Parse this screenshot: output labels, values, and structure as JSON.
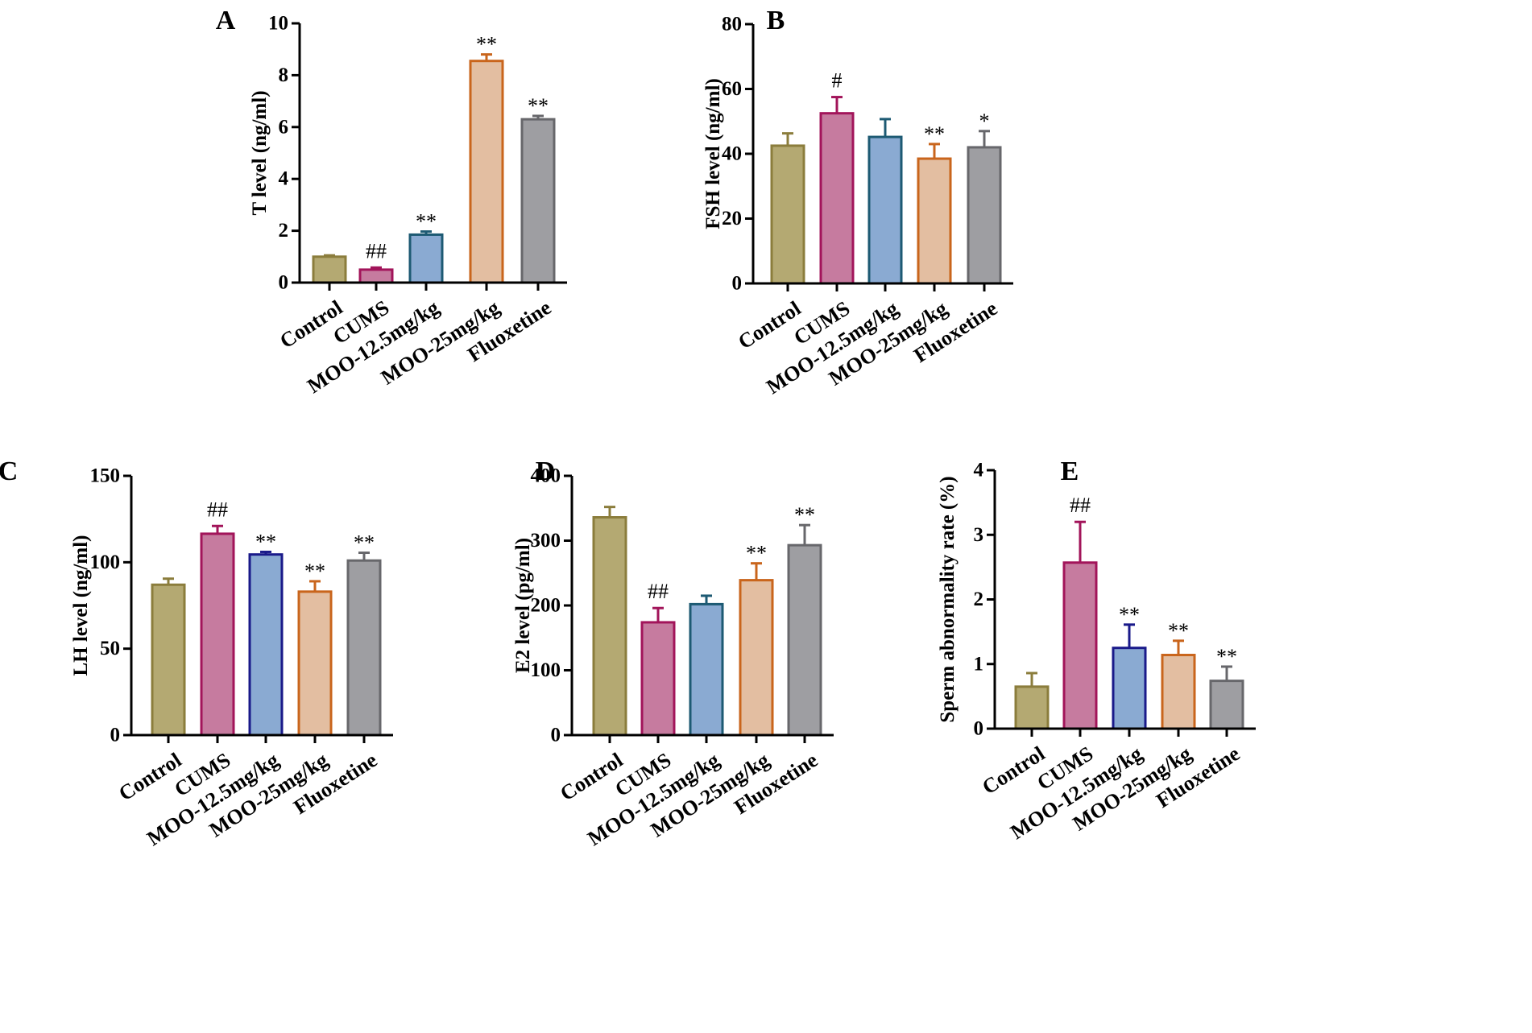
{
  "colors": {
    "fills": [
      "#b4a972",
      "#c67b9f",
      "#8aaad2",
      "#e3bea1",
      "#9e9ea2"
    ],
    "strokes_default": [
      "#8b7d3c",
      "#a2145a",
      "#1d5a73",
      "#c9651c",
      "#67676b"
    ],
    "strokes_panel_c": [
      "#8b7d3c",
      "#a2145a",
      "#1a1a8a",
      "#c9651c",
      "#67676b"
    ],
    "strokes_panel_e": [
      "#8b7d3c",
      "#a2145a",
      "#1a1a8a",
      "#c9651c",
      "#67676b"
    ]
  },
  "chart_data": [
    {
      "panel": "A",
      "type": "bar",
      "title": "",
      "ylabel": "T level (ng/ml)",
      "ylim": [
        0,
        10
      ],
      "yticks": [
        0,
        2,
        4,
        6,
        8,
        10
      ],
      "categories": [
        "Control",
        "CUMS",
        "MOO-12.5mg/kg",
        "MOO-25mg/kg",
        "Fluoxetine"
      ],
      "values": [
        1.0,
        0.5,
        1.85,
        8.55,
        6.3
      ],
      "errors": [
        0.05,
        0.08,
        0.12,
        0.25,
        0.13
      ],
      "significance": [
        "",
        "##",
        "**",
        "**",
        "**"
      ]
    },
    {
      "panel": "B",
      "type": "bar",
      "title": "",
      "ylabel": "FSH level (ng/ml)",
      "ylim": [
        0,
        80
      ],
      "yticks": [
        0,
        20,
        40,
        60,
        80
      ],
      "categories": [
        "Control",
        "CUMS",
        "MOO-12.5mg/kg",
        "MOO-25mg/kg",
        "Fluoxetine"
      ],
      "values": [
        42.5,
        52.5,
        45.2,
        38.5,
        42.0
      ],
      "errors": [
        3.8,
        5.0,
        5.5,
        4.5,
        5.0
      ],
      "significance": [
        "",
        "#",
        "",
        "**",
        "*"
      ]
    },
    {
      "panel": "C",
      "type": "bar",
      "title": "",
      "ylabel": "LH level (ng/ml)",
      "ylim": [
        0,
        150
      ],
      "yticks": [
        0,
        50,
        100,
        150
      ],
      "categories": [
        "Control",
        "CUMS",
        "MOO-12.5mg/kg",
        "MOO-25mg/kg",
        "Fluoxetine"
      ],
      "values": [
        87.0,
        116.5,
        104.5,
        83.0,
        101.0
      ],
      "errors": [
        3.5,
        4.5,
        1.5,
        6.0,
        4.5
      ],
      "significance": [
        "",
        "##",
        "**",
        "**",
        "**"
      ]
    },
    {
      "panel": "D",
      "type": "bar",
      "title": "",
      "ylabel": "E2 level (pg/ml)",
      "ylim": [
        0,
        400
      ],
      "yticks": [
        0,
        100,
        200,
        300,
        400
      ],
      "categories": [
        "Control",
        "CUMS",
        "MOO-12.5mg/kg",
        "MOO-25mg/kg",
        "Fluoxetine"
      ],
      "values": [
        336,
        174,
        202,
        239,
        293
      ],
      "errors": [
        16,
        22,
        13,
        26,
        31
      ],
      "significance": [
        "",
        "##",
        "",
        "**",
        "**"
      ]
    },
    {
      "panel": "E",
      "type": "bar",
      "title": "",
      "ylabel": "Sperm abnormality rate (%)",
      "ylim": [
        0,
        4
      ],
      "yticks": [
        0,
        1,
        2,
        3,
        4
      ],
      "categories": [
        "Control",
        "CUMS",
        "MOO-12.5mg/kg",
        "MOO-25mg/kg",
        "Fluoxetine"
      ],
      "values": [
        0.65,
        2.57,
        1.25,
        1.14,
        0.74
      ],
      "errors": [
        0.21,
        0.63,
        0.36,
        0.22,
        0.22
      ],
      "significance": [
        "",
        "##",
        "**",
        "**",
        "**"
      ]
    }
  ]
}
